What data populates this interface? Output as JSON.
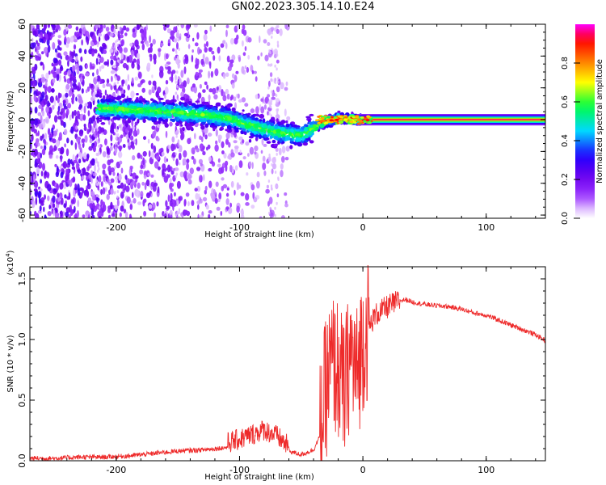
{
  "title": "GN02.2023.305.14.10.E24",
  "colors": {
    "frame": "#000000",
    "snr_line": "#ee2a2a",
    "background": "#ffffff"
  },
  "colorbar": {
    "label": "Normalized spectral amplitude",
    "range": [
      0.0,
      1.0
    ],
    "ticks": [
      "0.0",
      "0.2",
      "0.4",
      "0.6",
      "0.8"
    ],
    "palette": [
      "#ffffff",
      "#7a00ff",
      "#0000ff",
      "#00ffff",
      "#00ff00",
      "#ffff00",
      "#ff8000",
      "#ff0000",
      "#ff00ff"
    ]
  },
  "chart_data": [
    {
      "type": "heatmap",
      "title": "GN02.2023.305.14.10.E24",
      "xlabel": "Height of straight line (km)",
      "ylabel": "Frequency (Hz)",
      "xlim": [
        -270,
        148
      ],
      "ylim": [
        -62,
        60
      ],
      "xticks": [
        "-200",
        "-100",
        "0",
        "100"
      ],
      "yticks": [
        "60",
        "40",
        "20",
        "0",
        "-20",
        "-40",
        "-60"
      ],
      "ridge": {
        "description_points": [
          {
            "x": -210,
            "y": 7
          },
          {
            "x": -160,
            "y": 5
          },
          {
            "x": -130,
            "y": 3
          },
          {
            "x": -110,
            "y": 1
          },
          {
            "x": -90,
            "y": -4
          },
          {
            "x": -70,
            "y": -8
          },
          {
            "x": -50,
            "y": -10
          },
          {
            "x": -35,
            "y": -3
          },
          {
            "x": -20,
            "y": 1
          },
          {
            "x": 0,
            "y": 0
          },
          {
            "x": 148,
            "y": 0
          }
        ]
      }
    },
    {
      "type": "line",
      "xlabel": "Height of straight line (km)",
      "ylabel": "SNR (10 * v/v)",
      "yscale_label": "(x10",
      "yscale_exp": "4",
      "yscale_close": ")",
      "xlim": [
        -270,
        148
      ],
      "ylim": [
        0,
        1.6
      ],
      "xticks": [
        "-200",
        "-100",
        "0",
        "100"
      ],
      "yticks": [
        "0.0",
        "0.5",
        "1.0",
        "1.5"
      ],
      "series": [
        {
          "x": [
            -270,
            -250,
            -230,
            -210,
            -190,
            -170,
            -150,
            -130,
            -110,
            -100,
            -90,
            -80,
            -70,
            -60,
            -50,
            -40,
            -35,
            -30,
            -25,
            -20,
            -15,
            -10,
            -5,
            0,
            5,
            10,
            20,
            30,
            35,
            40,
            50,
            60,
            70,
            80,
            90,
            100,
            110,
            120,
            130,
            140,
            148
          ],
          "y": [
            0.02,
            0.02,
            0.03,
            0.03,
            0.04,
            0.06,
            0.08,
            0.09,
            0.11,
            0.14,
            0.18,
            0.22,
            0.17,
            0.08,
            0.05,
            0.09,
            0.2,
            0.6,
            0.8,
            0.75,
            0.55,
            0.9,
            0.7,
            1.0,
            1.1,
            1.2,
            1.27,
            1.32,
            1.33,
            1.31,
            1.29,
            1.28,
            1.27,
            1.25,
            1.22,
            1.2,
            1.16,
            1.12,
            1.08,
            1.04,
            0.99
          ]
        }
      ]
    }
  ]
}
